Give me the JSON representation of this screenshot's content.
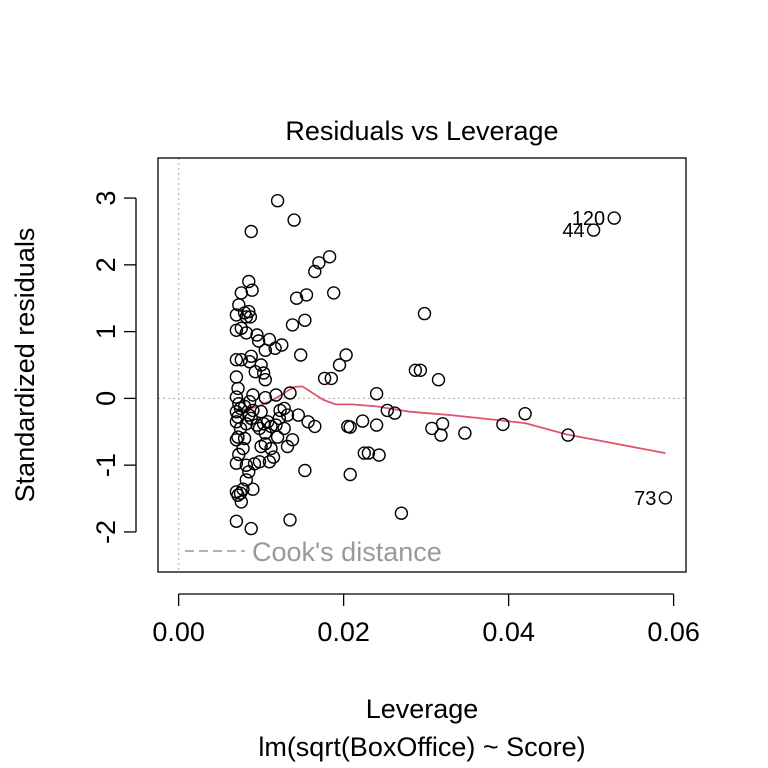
{
  "chart_data": {
    "type": "scatter",
    "title": "Residuals vs Leverage",
    "subtitle": "lm(sqrt(BoxOffice) ~ Score)",
    "xlabel": "Leverage",
    "ylabel": "Standardized residuals",
    "xlim": [
      -0.0025,
      0.0615
    ],
    "ylim": [
      -2.6,
      3.6
    ],
    "xticks": [
      0,
      0.02,
      0.04,
      0.06
    ],
    "xtick_labels": [
      "0.00",
      "0.02",
      "0.04",
      "0.06"
    ],
    "yticks": [
      -2,
      -1,
      0,
      1,
      2,
      3
    ],
    "ytick_labels": [
      "-2",
      "-1",
      "0",
      "1",
      "2",
      "3"
    ],
    "legend": {
      "label": "Cook's distance",
      "placement": "bottom-left",
      "line_style": "dashed",
      "color": "#999999"
    },
    "reference_lines": {
      "h": 0,
      "v": 0,
      "style": "dotted",
      "color": "#bbbbbb"
    },
    "smoother_color": "#df536b",
    "point_style": "open-circle",
    "points": [
      {
        "x": 0.007,
        "y": -1.84
      },
      {
        "x": 0.007,
        "y": -1.4
      },
      {
        "x": 0.0072,
        "y": -1.45
      },
      {
        "x": 0.0075,
        "y": -1.42
      },
      {
        "x": 0.0078,
        "y": -1.36
      },
      {
        "x": 0.0076,
        "y": -1.55
      },
      {
        "x": 0.0082,
        "y": -1.22
      },
      {
        "x": 0.0088,
        "y": -1.95
      },
      {
        "x": 0.009,
        "y": -1.36
      },
      {
        "x": 0.007,
        "y": -0.97
      },
      {
        "x": 0.0073,
        "y": -0.84
      },
      {
        "x": 0.0078,
        "y": -0.75
      },
      {
        "x": 0.0082,
        "y": -1.0
      },
      {
        "x": 0.0085,
        "y": -1.1
      },
      {
        "x": 0.0092,
        "y": -0.98
      },
      {
        "x": 0.0098,
        "y": -0.95
      },
      {
        "x": 0.011,
        "y": -0.95
      },
      {
        "x": 0.0115,
        "y": -0.88
      },
      {
        "x": 0.0112,
        "y": -0.75
      },
      {
        "x": 0.007,
        "y": -0.62
      },
      {
        "x": 0.0072,
        "y": -0.58
      },
      {
        "x": 0.0075,
        "y": -0.45
      },
      {
        "x": 0.007,
        "y": -0.35
      },
      {
        "x": 0.0072,
        "y": -0.28
      },
      {
        "x": 0.007,
        "y": -0.2
      },
      {
        "x": 0.0075,
        "y": -0.15
      },
      {
        "x": 0.0073,
        "y": -0.08
      },
      {
        "x": 0.007,
        "y": 0.02
      },
      {
        "x": 0.0072,
        "y": 0.15
      },
      {
        "x": 0.007,
        "y": 0.32
      },
      {
        "x": 0.008,
        "y": -0.6
      },
      {
        "x": 0.0082,
        "y": -0.38
      },
      {
        "x": 0.0085,
        "y": -0.25
      },
      {
        "x": 0.0088,
        "y": -0.3
      },
      {
        "x": 0.008,
        "y": -0.12
      },
      {
        "x": 0.0086,
        "y": -0.05
      },
      {
        "x": 0.009,
        "y": -0.18
      },
      {
        "x": 0.0095,
        "y": -0.4
      },
      {
        "x": 0.0098,
        "y": -0.45
      },
      {
        "x": 0.0103,
        "y": -0.38
      },
      {
        "x": 0.0105,
        "y": -0.52
      },
      {
        "x": 0.0108,
        "y": -0.35
      },
      {
        "x": 0.0112,
        "y": -0.42
      },
      {
        "x": 0.0118,
        "y": -0.4
      },
      {
        "x": 0.012,
        "y": -0.58
      },
      {
        "x": 0.0122,
        "y": -0.3
      },
      {
        "x": 0.01,
        "y": -0.72
      },
      {
        "x": 0.0105,
        "y": -0.68
      },
      {
        "x": 0.009,
        "y": 0.05
      },
      {
        "x": 0.01,
        "y": -0.2
      },
      {
        "x": 0.0105,
        "y": 0.01
      },
      {
        "x": 0.0118,
        "y": 0.05
      },
      {
        "x": 0.0123,
        "y": -0.18
      },
      {
        "x": 0.0128,
        "y": -0.15
      },
      {
        "x": 0.0128,
        "y": -0.45
      },
      {
        "x": 0.0132,
        "y": -0.25
      },
      {
        "x": 0.0132,
        "y": -0.72
      },
      {
        "x": 0.0135,
        "y": 0.08
      },
      {
        "x": 0.0138,
        "y": -0.62
      },
      {
        "x": 0.0145,
        "y": -0.25
      },
      {
        "x": 0.007,
        "y": 0.58
      },
      {
        "x": 0.0076,
        "y": 0.58
      },
      {
        "x": 0.0086,
        "y": 0.55
      },
      {
        "x": 0.0088,
        "y": 0.63
      },
      {
        "x": 0.0093,
        "y": 0.4
      },
      {
        "x": 0.01,
        "y": 0.5
      },
      {
        "x": 0.0103,
        "y": 0.38
      },
      {
        "x": 0.0105,
        "y": 0.28
      },
      {
        "x": 0.007,
        "y": 1.02
      },
      {
        "x": 0.0076,
        "y": 1.05
      },
      {
        "x": 0.0082,
        "y": 0.98
      },
      {
        "x": 0.0095,
        "y": 0.95
      },
      {
        "x": 0.0097,
        "y": 0.86
      },
      {
        "x": 0.0105,
        "y": 0.72
      },
      {
        "x": 0.011,
        "y": 0.88
      },
      {
        "x": 0.0117,
        "y": 0.75
      },
      {
        "x": 0.0125,
        "y": 0.8
      },
      {
        "x": 0.007,
        "y": 1.25
      },
      {
        "x": 0.0073,
        "y": 1.4
      },
      {
        "x": 0.0076,
        "y": 1.58
      },
      {
        "x": 0.008,
        "y": 1.28
      },
      {
        "x": 0.0082,
        "y": 1.22
      },
      {
        "x": 0.0085,
        "y": 1.3
      },
      {
        "x": 0.0087,
        "y": 1.22
      },
      {
        "x": 0.0089,
        "y": 1.62
      },
      {
        "x": 0.0085,
        "y": 1.75
      },
      {
        "x": 0.0088,
        "y": 2.5
      },
      {
        "x": 0.0138,
        "y": 1.1
      },
      {
        "x": 0.0143,
        "y": 1.5
      },
      {
        "x": 0.0148,
        "y": 0.65
      },
      {
        "x": 0.0153,
        "y": 1.17
      },
      {
        "x": 0.0155,
        "y": 1.55
      },
      {
        "x": 0.0165,
        "y": 1.9
      },
      {
        "x": 0.017,
        "y": 2.03
      },
      {
        "x": 0.0183,
        "y": 2.12
      },
      {
        "x": 0.0188,
        "y": 1.58
      },
      {
        "x": 0.014,
        "y": 2.67
      },
      {
        "x": 0.012,
        "y": 2.96
      },
      {
        "x": 0.0157,
        "y": -0.35
      },
      {
        "x": 0.0165,
        "y": -0.42
      },
      {
        "x": 0.0153,
        "y": -1.08
      },
      {
        "x": 0.0135,
        "y": -1.82
      },
      {
        "x": 0.0177,
        "y": 0.3
      },
      {
        "x": 0.0185,
        "y": 0.3
      },
      {
        "x": 0.0195,
        "y": 0.5
      },
      {
        "x": 0.0203,
        "y": 0.65
      },
      {
        "x": 0.0205,
        "y": -0.42
      },
      {
        "x": 0.0208,
        "y": -0.43
      },
      {
        "x": 0.0208,
        "y": -1.14
      },
      {
        "x": 0.0223,
        "y": -0.34
      },
      {
        "x": 0.0225,
        "y": -0.82
      },
      {
        "x": 0.023,
        "y": -0.82
      },
      {
        "x": 0.024,
        "y": 0.07
      },
      {
        "x": 0.024,
        "y": -0.4
      },
      {
        "x": 0.0243,
        "y": -0.85
      },
      {
        "x": 0.0253,
        "y": -0.18
      },
      {
        "x": 0.0262,
        "y": -0.22
      },
      {
        "x": 0.027,
        "y": -1.72
      },
      {
        "x": 0.0287,
        "y": 0.42
      },
      {
        "x": 0.0293,
        "y": 0.42
      },
      {
        "x": 0.0298,
        "y": 1.27
      },
      {
        "x": 0.0307,
        "y": -0.45
      },
      {
        "x": 0.0315,
        "y": 0.28
      },
      {
        "x": 0.0318,
        "y": -0.55
      },
      {
        "x": 0.032,
        "y": -0.38
      },
      {
        "x": 0.0347,
        "y": -0.52
      },
      {
        "x": 0.0393,
        "y": -0.39
      },
      {
        "x": 0.042,
        "y": -0.23
      },
      {
        "x": 0.0472,
        "y": -0.55
      },
      {
        "x": 0.0503,
        "y": 2.52
      },
      {
        "x": 0.0528,
        "y": 2.7
      },
      {
        "x": 0.059,
        "y": -1.49
      }
    ],
    "point_labels": [
      {
        "text": "120",
        "x": 0.0528,
        "y": 2.7
      },
      {
        "text": "44",
        "x": 0.0503,
        "y": 2.52
      },
      {
        "text": "73",
        "x": 0.059,
        "y": -1.49
      }
    ],
    "smoother": [
      {
        "x": 0.007,
        "y": -0.18
      },
      {
        "x": 0.0085,
        "y": -0.16
      },
      {
        "x": 0.01,
        "y": -0.1
      },
      {
        "x": 0.0115,
        "y": -0.02
      },
      {
        "x": 0.0128,
        "y": 0.08
      },
      {
        "x": 0.014,
        "y": 0.17
      },
      {
        "x": 0.015,
        "y": 0.18
      },
      {
        "x": 0.016,
        "y": 0.1
      },
      {
        "x": 0.0175,
        "y": -0.02
      },
      {
        "x": 0.019,
        "y": -0.09
      },
      {
        "x": 0.021,
        "y": -0.09
      },
      {
        "x": 0.024,
        "y": -0.12
      },
      {
        "x": 0.028,
        "y": -0.2
      },
      {
        "x": 0.033,
        "y": -0.25
      },
      {
        "x": 0.039,
        "y": -0.33
      },
      {
        "x": 0.042,
        "y": -0.37
      },
      {
        "x": 0.047,
        "y": -0.54
      },
      {
        "x": 0.053,
        "y": -0.68
      },
      {
        "x": 0.059,
        "y": -0.82
      }
    ]
  }
}
